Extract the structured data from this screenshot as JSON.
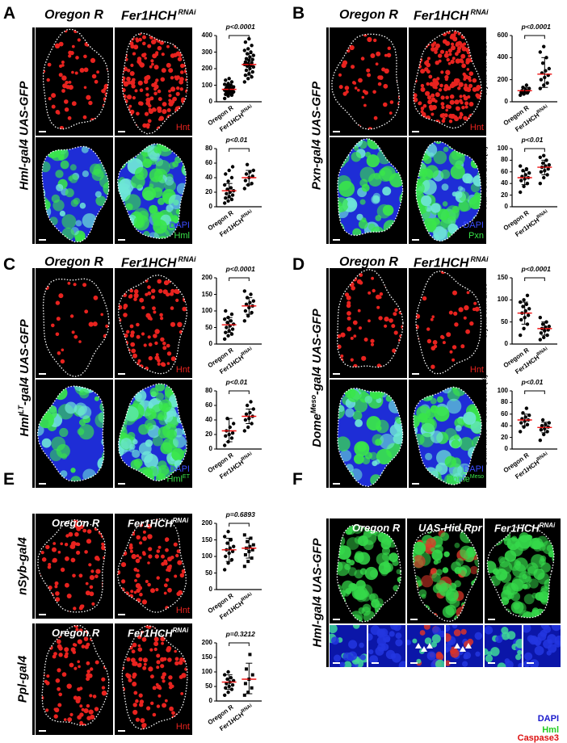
{
  "panel_letters": [
    "A",
    "B",
    "C",
    "D",
    "E",
    "F"
  ],
  "columns": {
    "control": "Oregon R",
    "rnai": "Fer1HCH",
    "rnai_sup": "RNAi",
    "hid": "UAS-Hid,Rpr"
  },
  "row_labels": {
    "A": "Hml-gal4 UAS-GFP",
    "B": "Pxn-gal4 UAS-GFP",
    "C_main": "Hml",
    "C_sup": "LT",
    "C_rest": "-gal4 UAS-GFP",
    "D_main": "Dome",
    "D_sup": "Meso",
    "D_rest": "-gal4 UAS-GFP",
    "E_top": "nSyb-gal4",
    "E_bottom": "Ppl-gal4",
    "F": "Hml-gal4 UAS-GFP"
  },
  "channels": {
    "hnt": "Hnt",
    "dapi": "DAPI",
    "hml": "Hml",
    "pxn": "Pxn",
    "hmlet": "Hml",
    "hmlet_sup": "ET",
    "dome": "Dome",
    "dome_sup": "Meso"
  },
  "legend_F": {
    "dapi": "DAPI",
    "hml": "Hml",
    "caspase": "Caspase3"
  },
  "xcats": {
    "a": "Oregon R",
    "b": "Fer1HCH",
    "b_sup": "RNAi"
  },
  "colors": {
    "hnt": "#e8231f",
    "dapi": "#1e2dd6",
    "gfp": "#39e64a",
    "cyan": "#6fe7d8",
    "outline": "#ffffff"
  },
  "chart_data": [
    {
      "id": "A1",
      "type": "scatter",
      "ylabel": "Crystal cell / Lobe",
      "ylim": [
        0,
        400
      ],
      "ticks": [
        0,
        100,
        200,
        300,
        400
      ],
      "pvalue": "p<0.0001",
      "means": [
        75,
        225
      ],
      "sd": [
        [
          45,
          105
        ],
        [
          160,
          290
        ]
      ],
      "series": [
        {
          "name": "Oregon R",
          "values": [
            20,
            35,
            40,
            45,
            50,
            55,
            55,
            60,
            60,
            65,
            65,
            70,
            70,
            75,
            75,
            80,
            80,
            85,
            85,
            90,
            95,
            100,
            105,
            110,
            120,
            130,
            140
          ]
        },
        {
          "name": "Fer1HCH RNAi",
          "values": [
            120,
            140,
            150,
            160,
            170,
            180,
            190,
            200,
            210,
            215,
            220,
            225,
            230,
            235,
            240,
            250,
            255,
            260,
            270,
            280,
            290,
            300,
            310,
            320,
            340,
            360,
            380
          ]
        }
      ]
    },
    {
      "id": "A2",
      "type": "scatter",
      "ylabel": "Hml+ Area / Lobe (%)",
      "ylim": [
        0,
        80
      ],
      "ticks": [
        0,
        20,
        40,
        60,
        80
      ],
      "pvalue": "p<0.01",
      "means": [
        22,
        40
      ],
      "sd": [
        [
          12,
          32
        ],
        [
          30,
          50
        ]
      ],
      "series": [
        {
          "name": "Oregon R",
          "values": [
            5,
            8,
            10,
            12,
            14,
            16,
            18,
            20,
            22,
            24,
            26,
            30,
            35,
            40,
            45,
            50,
            55
          ]
        },
        {
          "name": "Fer1HCH RNAi",
          "values": [
            25,
            30,
            32,
            36,
            40,
            42,
            45,
            48,
            50,
            58
          ]
        }
      ]
    },
    {
      "id": "B1",
      "type": "scatter",
      "ylabel": "Crystal cell / Lobe",
      "ylim": [
        0,
        600
      ],
      "ticks": [
        0,
        200,
        400,
        600
      ],
      "pvalue": "p<0.0001",
      "means": [
        100,
        250
      ],
      "sd": [
        [
          70,
          130
        ],
        [
          130,
          400
        ]
      ],
      "series": [
        {
          "name": "Oregon R",
          "values": [
            60,
            70,
            80,
            85,
            90,
            95,
            100,
            110,
            120,
            130,
            150
          ]
        },
        {
          "name": "Fer1HCH RNAi",
          "values": [
            120,
            150,
            170,
            200,
            220,
            240,
            260,
            280,
            300,
            350,
            400,
            450,
            500
          ]
        }
      ]
    },
    {
      "id": "B2",
      "type": "scatter",
      "ylabel": "Pxn+ Area / Lobe(%)",
      "ylim": [
        0,
        100
      ],
      "ticks": [
        0,
        20,
        40,
        60,
        80,
        100
      ],
      "pvalue": "p<0.01",
      "means": [
        50,
        68
      ],
      "sd": [
        [
          38,
          62
        ],
        [
          55,
          80
        ]
      ],
      "series": [
        {
          "name": "Oregon R",
          "values": [
            25,
            35,
            40,
            45,
            48,
            50,
            52,
            55,
            58,
            62,
            65,
            70
          ]
        },
        {
          "name": "Fer1HCH RNAi",
          "values": [
            40,
            50,
            55,
            60,
            62,
            65,
            68,
            70,
            72,
            75,
            80,
            85,
            88
          ]
        }
      ]
    },
    {
      "id": "C1",
      "type": "scatter",
      "ylabel": "Crystal cell / Lobe",
      "ylim": [
        0,
        200
      ],
      "ticks": [
        0,
        50,
        100,
        150,
        200
      ],
      "pvalue": "p<0.0001",
      "means": [
        58,
        115
      ],
      "sd": [
        [
          35,
          80
        ],
        [
          90,
          140
        ]
      ],
      "series": [
        {
          "name": "Oregon R",
          "values": [
            15,
            25,
            30,
            35,
            40,
            45,
            50,
            55,
            60,
            65,
            70,
            75,
            80,
            90,
            100
          ]
        },
        {
          "name": "Fer1HCH RNAi",
          "values": [
            70,
            85,
            95,
            100,
            110,
            115,
            120,
            125,
            130,
            140,
            150,
            160
          ]
        }
      ]
    },
    {
      "id": "C2",
      "type": "scatter",
      "ylabel": "Hml LT + Area / Lobe (%)",
      "ylim": [
        0,
        80
      ],
      "ticks": [
        0,
        20,
        40,
        60,
        80
      ],
      "pvalue": "p<0.01",
      "means": [
        25,
        45
      ],
      "sd": [
        [
          10,
          42
        ],
        [
          35,
          55
        ]
      ],
      "series": [
        {
          "name": "Oregon R",
          "values": [
            5,
            10,
            15,
            18,
            20,
            22,
            25,
            30,
            35,
            42
          ]
        },
        {
          "name": "Fer1HCH RNAi",
          "values": [
            25,
            30,
            35,
            40,
            42,
            45,
            48,
            50,
            55,
            60,
            65
          ]
        }
      ]
    },
    {
      "id": "D1",
      "type": "scatter",
      "ylabel": "Crystal cell / Lobe",
      "ylim": [
        0,
        150
      ],
      "ticks": [
        0,
        50,
        100,
        150
      ],
      "pvalue": "p<0.0001",
      "means": [
        70,
        35
      ],
      "sd": [
        [
          45,
          95
        ],
        [
          20,
          50
        ]
      ],
      "series": [
        {
          "name": "Oregon R",
          "values": [
            20,
            35,
            45,
            55,
            60,
            65,
            70,
            75,
            80,
            85,
            90,
            95,
            100,
            110
          ]
        },
        {
          "name": "Fer1HCH RNAi",
          "values": [
            10,
            15,
            20,
            25,
            30,
            32,
            35,
            38,
            40,
            45,
            50,
            60
          ]
        }
      ]
    },
    {
      "id": "D2",
      "type": "scatter",
      "ylabel": "Dome Meso + Area / Lobe (%)",
      "ylim": [
        0,
        100
      ],
      "ticks": [
        0,
        20,
        40,
        60,
        80,
        100
      ],
      "pvalue": "p<0.01",
      "means": [
        50,
        37
      ],
      "sd": [
        [
          40,
          60
        ],
        [
          28,
          46
        ]
      ],
      "series": [
        {
          "name": "Oregon R",
          "values": [
            30,
            38,
            42,
            45,
            48,
            50,
            52,
            55,
            58,
            62,
            70
          ]
        },
        {
          "name": "Fer1HCH RNAi",
          "values": [
            15,
            25,
            30,
            33,
            35,
            38,
            40,
            42,
            45,
            50
          ]
        }
      ]
    },
    {
      "id": "E1",
      "type": "scatter",
      "ylabel": "Crystal cell / Lobe",
      "ylim": [
        0,
        200
      ],
      "ticks": [
        0,
        50,
        100,
        150,
        200
      ],
      "pvalue": "p=0.6893",
      "means": [
        120,
        125
      ],
      "sd": [
        [
          85,
          155
        ],
        [
          95,
          155
        ]
      ],
      "series": [
        {
          "name": "Oregon R",
          "values": [
            60,
            80,
            90,
            100,
            110,
            115,
            120,
            125,
            130,
            140,
            150,
            160,
            175
          ]
        },
        {
          "name": "Fer1HCH RNAi",
          "values": [
            70,
            85,
            95,
            105,
            115,
            120,
            125,
            130,
            135,
            145,
            155,
            165
          ]
        }
      ]
    },
    {
      "id": "E2",
      "type": "scatter",
      "ylabel": "Crystal cell / Lobe",
      "ylim": [
        0,
        200
      ],
      "ticks": [
        0,
        50,
        100,
        150,
        200
      ],
      "pvalue": "p=0.3212",
      "means": [
        65,
        75
      ],
      "sd": [
        [
          40,
          90
        ],
        [
          25,
          130
        ]
      ],
      "series": [
        {
          "name": "Oregon R",
          "values": [
            20,
            30,
            40,
            45,
            50,
            55,
            60,
            65,
            70,
            75,
            80,
            90,
            100
          ]
        },
        {
          "name": "Fer1HCH RNAi",
          "values": [
            20,
            30,
            45,
            60,
            75,
            90,
            110,
            160
          ]
        }
      ]
    }
  ]
}
